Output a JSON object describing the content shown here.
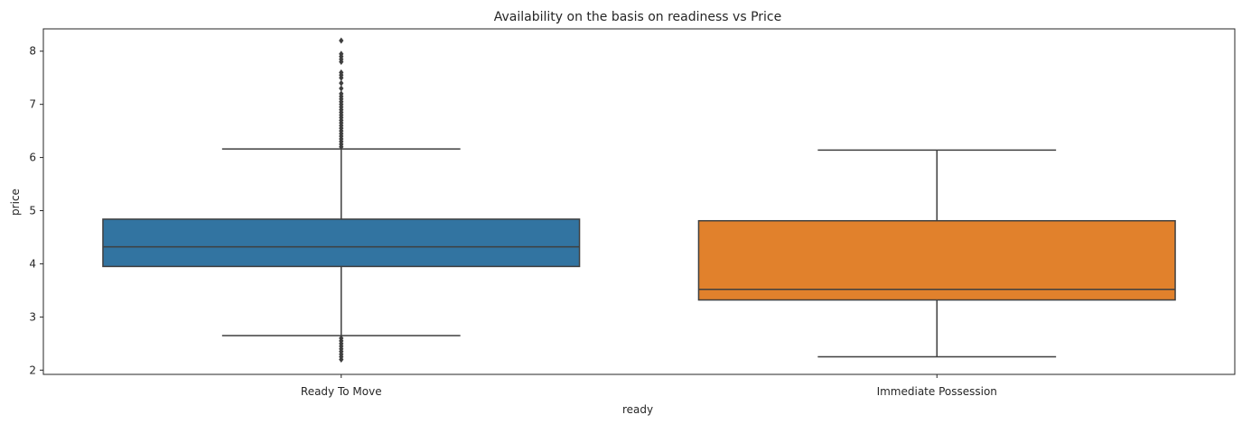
{
  "chart_data": {
    "type": "box",
    "title": "Availability on the basis on readiness vs Price",
    "xlabel": "ready",
    "ylabel": "price",
    "ylim": [
      1.92,
      8.42
    ],
    "yticks": [
      2,
      3,
      4,
      5,
      6,
      7,
      8
    ],
    "grid": false,
    "categories": [
      "Ready To Move",
      "Immediate Possession"
    ],
    "series": [
      {
        "category": "Ready To Move",
        "color": "#3274a1",
        "whisker_low": 2.65,
        "q1": 3.95,
        "median": 4.32,
        "q3": 4.84,
        "whisker_high": 6.16,
        "outliers": [
          2.2,
          2.25,
          2.3,
          2.35,
          2.4,
          2.45,
          2.5,
          2.55,
          2.6,
          6.2,
          6.25,
          6.3,
          6.35,
          6.4,
          6.45,
          6.5,
          6.55,
          6.6,
          6.65,
          6.7,
          6.75,
          6.8,
          6.85,
          6.9,
          6.95,
          7.0,
          7.05,
          7.1,
          7.15,
          7.2,
          7.3,
          7.4,
          7.5,
          7.55,
          7.6,
          7.8,
          7.85,
          7.9,
          7.95,
          8.2
        ]
      },
      {
        "category": "Immediate Possession",
        "color": "#e1812c",
        "whisker_low": 2.25,
        "q1": 3.32,
        "median": 3.52,
        "q3": 4.81,
        "whisker_high": 6.14,
        "outliers": []
      }
    ]
  }
}
